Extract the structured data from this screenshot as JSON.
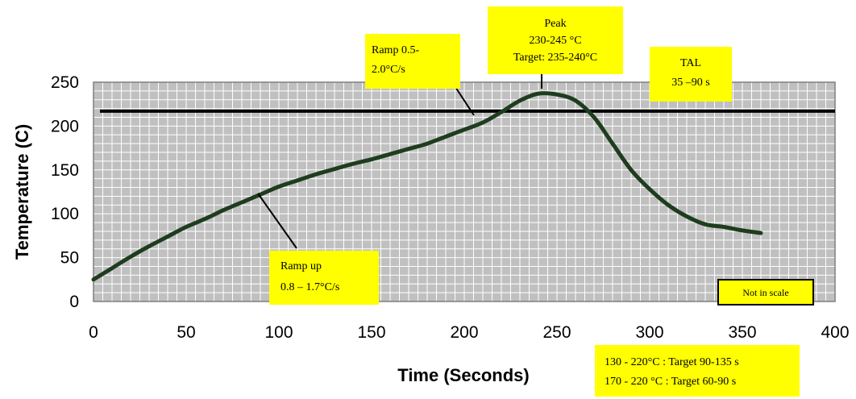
{
  "chart_data": {
    "type": "line",
    "xlabel": "Time (Seconds)",
    "ylabel": "Temperature (C)",
    "xlim": [
      0,
      400
    ],
    "ylim": [
      0,
      250
    ],
    "x_ticks": [
      0,
      50,
      100,
      150,
      200,
      250,
      300,
      350,
      400
    ],
    "y_ticks": [
      0,
      50,
      100,
      150,
      200,
      250
    ],
    "grid": true,
    "colors": {
      "plot_bg": "#c0c0c0",
      "grid": "#ffffff",
      "curve": "#1e3d1e",
      "line": "#000000",
      "callout": "#ffff00"
    },
    "series": [
      {
        "x": [
          0,
          10,
          20,
          30,
          40,
          50,
          60,
          70,
          80,
          90,
          100,
          110,
          120,
          130,
          140,
          150,
          160,
          170,
          180,
          190,
          200,
          210,
          220,
          230,
          240,
          250,
          260,
          270,
          280,
          290,
          300,
          310,
          320,
          330,
          340,
          350,
          360
        ],
        "values": [
          25,
          38,
          51,
          63,
          74,
          85,
          94,
          104,
          113,
          122,
          131,
          138,
          145,
          151,
          157,
          162,
          168,
          174,
          180,
          188,
          196,
          204,
          216,
          229,
          237,
          236,
          229,
          210,
          180,
          150,
          128,
          110,
          97,
          88,
          85,
          81,
          78
        ]
      }
    ],
    "reference_line": {
      "y": 217
    },
    "annotations": {
      "peak": [
        "Peak",
        "230-245 °C",
        "Target: 235-240°C"
      ],
      "ramp_fast": [
        "Ramp 0.5-",
        "2.0°C/s"
      ],
      "tal": [
        "TAL",
        "35 –90 s"
      ],
      "ramp_up": [
        "Ramp up",
        "0.8 – 1.7°C/s"
      ],
      "scale_note": "Not in scale",
      "targets": [
        "130 - 220°C  : Target 90-135 s",
        "170 - 220 °C : Target 60-90 s"
      ]
    }
  }
}
